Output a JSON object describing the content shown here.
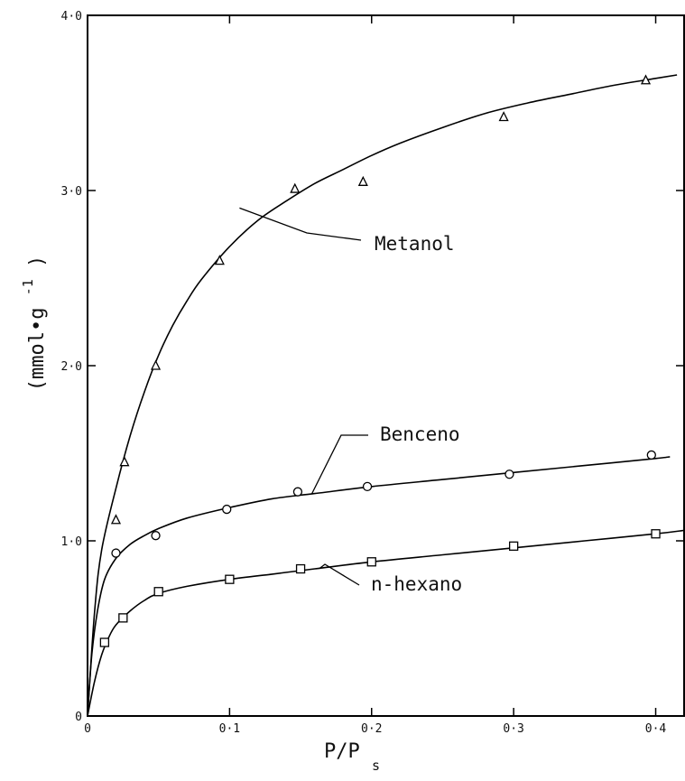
{
  "chart_data": {
    "type": "scatter",
    "xlabel": "P/P",
    "xlabel_sub": "s",
    "ylabel": "(mmol•g",
    "ylabel_sup": "-1",
    "ylabel_close": ")",
    "xlim": [
      0,
      0.42
    ],
    "ylim": [
      0,
      4.0
    ],
    "x_ticks": [
      {
        "value": 0,
        "label": "0"
      },
      {
        "value": 0.1,
        "label": "0·1"
      },
      {
        "value": 0.2,
        "label": "0·2"
      },
      {
        "value": 0.3,
        "label": "0·3"
      },
      {
        "value": 0.4,
        "label": "0·4"
      }
    ],
    "y_ticks": [
      {
        "value": 0,
        "label": "0"
      },
      {
        "value": 1.0,
        "label": "1·0"
      },
      {
        "value": 2.0,
        "label": "2·0"
      },
      {
        "value": 3.0,
        "label": "3·0"
      },
      {
        "value": 4.0,
        "label": "4·0"
      }
    ],
    "grid": false,
    "series": [
      {
        "name": "Metanol",
        "marker": "triangle",
        "points": [
          {
            "x": 0.02,
            "y": 1.12
          },
          {
            "x": 0.026,
            "y": 1.45
          },
          {
            "x": 0.048,
            "y": 2.0
          },
          {
            "x": 0.093,
            "y": 2.6
          },
          {
            "x": 0.146,
            "y": 3.01
          },
          {
            "x": 0.194,
            "y": 3.05
          },
          {
            "x": 0.293,
            "y": 3.42
          },
          {
            "x": 0.393,
            "y": 3.63
          }
        ],
        "curve": [
          [
            0,
            0
          ],
          [
            0.005,
            0.6
          ],
          [
            0.01,
            0.95
          ],
          [
            0.02,
            1.3
          ],
          [
            0.03,
            1.6
          ],
          [
            0.04,
            1.85
          ],
          [
            0.05,
            2.06
          ],
          [
            0.06,
            2.23
          ],
          [
            0.07,
            2.37
          ],
          [
            0.08,
            2.49
          ],
          [
            0.1,
            2.68
          ],
          [
            0.12,
            2.83
          ],
          [
            0.14,
            2.94
          ],
          [
            0.16,
            3.04
          ],
          [
            0.18,
            3.12
          ],
          [
            0.2,
            3.2
          ],
          [
            0.22,
            3.27
          ],
          [
            0.25,
            3.36
          ],
          [
            0.28,
            3.44
          ],
          [
            0.31,
            3.5
          ],
          [
            0.34,
            3.55
          ],
          [
            0.37,
            3.6
          ],
          [
            0.4,
            3.64
          ],
          [
            0.415,
            3.66
          ]
        ],
        "label_anchor": {
          "x": 0.107,
          "y": 2.9
        }
      },
      {
        "name": "Benceno",
        "marker": "circle",
        "points": [
          {
            "x": 0.02,
            "y": 0.93
          },
          {
            "x": 0.048,
            "y": 1.03
          },
          {
            "x": 0.098,
            "y": 1.18
          },
          {
            "x": 0.148,
            "y": 1.28
          },
          {
            "x": 0.197,
            "y": 1.31
          },
          {
            "x": 0.297,
            "y": 1.38
          },
          {
            "x": 0.397,
            "y": 1.49
          }
        ],
        "curve": [
          [
            0,
            0
          ],
          [
            0.003,
            0.35
          ],
          [
            0.007,
            0.6
          ],
          [
            0.012,
            0.78
          ],
          [
            0.02,
            0.9
          ],
          [
            0.03,
            0.98
          ],
          [
            0.04,
            1.03
          ],
          [
            0.05,
            1.07
          ],
          [
            0.07,
            1.13
          ],
          [
            0.1,
            1.19
          ],
          [
            0.13,
            1.24
          ],
          [
            0.16,
            1.27
          ],
          [
            0.2,
            1.31
          ],
          [
            0.25,
            1.35
          ],
          [
            0.3,
            1.39
          ],
          [
            0.35,
            1.43
          ],
          [
            0.4,
            1.47
          ],
          [
            0.41,
            1.48
          ]
        ],
        "label_anchor": {
          "x": 0.158,
          "y": 1.27
        }
      },
      {
        "name": "n-hexano",
        "marker": "square",
        "points": [
          {
            "x": 0.012,
            "y": 0.42
          },
          {
            "x": 0.025,
            "y": 0.56
          },
          {
            "x": 0.05,
            "y": 0.71
          },
          {
            "x": 0.1,
            "y": 0.78
          },
          {
            "x": 0.15,
            "y": 0.84
          },
          {
            "x": 0.2,
            "y": 0.88
          },
          {
            "x": 0.3,
            "y": 0.97
          },
          {
            "x": 0.4,
            "y": 1.04
          }
        ],
        "curve": [
          [
            0,
            0
          ],
          [
            0.005,
            0.2
          ],
          [
            0.01,
            0.35
          ],
          [
            0.015,
            0.45
          ],
          [
            0.02,
            0.52
          ],
          [
            0.03,
            0.6
          ],
          [
            0.04,
            0.66
          ],
          [
            0.05,
            0.7
          ],
          [
            0.07,
            0.74
          ],
          [
            0.1,
            0.78
          ],
          [
            0.13,
            0.81
          ],
          [
            0.16,
            0.84
          ],
          [
            0.2,
            0.88
          ],
          [
            0.25,
            0.92
          ],
          [
            0.3,
            0.96
          ],
          [
            0.35,
            1.0
          ],
          [
            0.4,
            1.04
          ],
          [
            0.42,
            1.06
          ]
        ],
        "label_anchor": {
          "x": 0.163,
          "y": 0.84
        }
      }
    ]
  }
}
